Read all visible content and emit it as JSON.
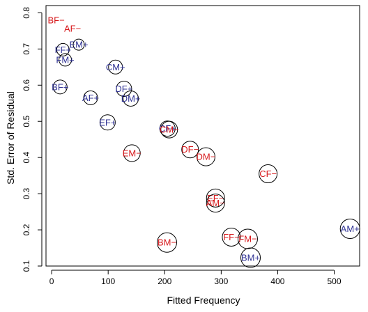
{
  "chart_data": {
    "type": "scatter",
    "title": "",
    "xlabel": "Fitted Frequency",
    "ylabel": "Std. Error of Residual",
    "xlim": [
      -10,
      545
    ],
    "ylim": [
      0.1,
      0.82
    ],
    "x_ticks": [
      0,
      100,
      200,
      300,
      400,
      500
    ],
    "y_ticks": [
      0.1,
      0.2,
      0.3,
      0.4,
      0.5,
      0.6,
      0.7,
      0.8
    ],
    "x_tick_labels": [
      "0",
      "100",
      "200",
      "300",
      "400",
      "500"
    ],
    "y_tick_labels": [
      "0.1",
      "0.2",
      "0.3",
      "0.4",
      "0.5",
      "0.6",
      "0.7",
      "0.8"
    ],
    "grid": false,
    "colors": {
      "positive": "#2e3192",
      "negative": "#d7191c"
    },
    "points": [
      {
        "label": "BF−",
        "x": 8,
        "y": 0.78,
        "color": "negative",
        "r": 0
      },
      {
        "label": "AF−",
        "x": 37,
        "y": 0.756,
        "color": "negative",
        "r": 0
      },
      {
        "label": "EM+",
        "x": 48,
        "y": 0.712,
        "color": "positive",
        "r": 8
      },
      {
        "label": "FF+",
        "x": 20,
        "y": 0.698,
        "color": "positive",
        "r": 9
      },
      {
        "label": "FM+",
        "x": 24,
        "y": 0.67,
        "color": "positive",
        "r": 9
      },
      {
        "label": "CM+",
        "x": 113,
        "y": 0.65,
        "color": "positive",
        "r": 10
      },
      {
        "label": "BF+",
        "x": 15,
        "y": 0.595,
        "color": "positive",
        "r": 10
      },
      {
        "label": "DF+",
        "x": 128,
        "y": 0.59,
        "color": "positive",
        "r": 11
      },
      {
        "label": "AF+",
        "x": 69,
        "y": 0.565,
        "color": "positive",
        "r": 10
      },
      {
        "label": "DM+",
        "x": 140,
        "y": 0.563,
        "color": "positive",
        "r": 11
      },
      {
        "label": "EF+",
        "x": 99,
        "y": 0.497,
        "color": "positive",
        "r": 11
      },
      {
        "label": "CF+",
        "x": 205,
        "y": 0.48,
        "color": "positive",
        "r": 11
      },
      {
        "label": "CM−",
        "x": 208,
        "y": 0.477,
        "color": "negative",
        "r": 12
      },
      {
        "label": "EM−",
        "x": 142,
        "y": 0.412,
        "color": "negative",
        "r": 12
      },
      {
        "label": "DF−",
        "x": 245,
        "y": 0.422,
        "color": "negative",
        "r": 12
      },
      {
        "label": "DM−",
        "x": 273,
        "y": 0.402,
        "color": "negative",
        "r": 13
      },
      {
        "label": "CF−",
        "x": 383,
        "y": 0.355,
        "color": "negative",
        "r": 13
      },
      {
        "label": "EF−",
        "x": 290,
        "y": 0.288,
        "color": "negative",
        "r": 13
      },
      {
        "label": "AM−",
        "x": 290,
        "y": 0.274,
        "color": "negative",
        "r": 13
      },
      {
        "label": "FF−",
        "x": 318,
        "y": 0.18,
        "color": "negative",
        "r": 13
      },
      {
        "label": "FM−",
        "x": 347,
        "y": 0.175,
        "color": "negative",
        "r": 14
      },
      {
        "label": "BM−",
        "x": 204,
        "y": 0.165,
        "color": "negative",
        "r": 14
      },
      {
        "label": "AM+",
        "x": 528,
        "y": 0.203,
        "color": "positive",
        "r": 14
      },
      {
        "label": "BM+",
        "x": 352,
        "y": 0.123,
        "color": "positive",
        "r": 14
      }
    ]
  }
}
